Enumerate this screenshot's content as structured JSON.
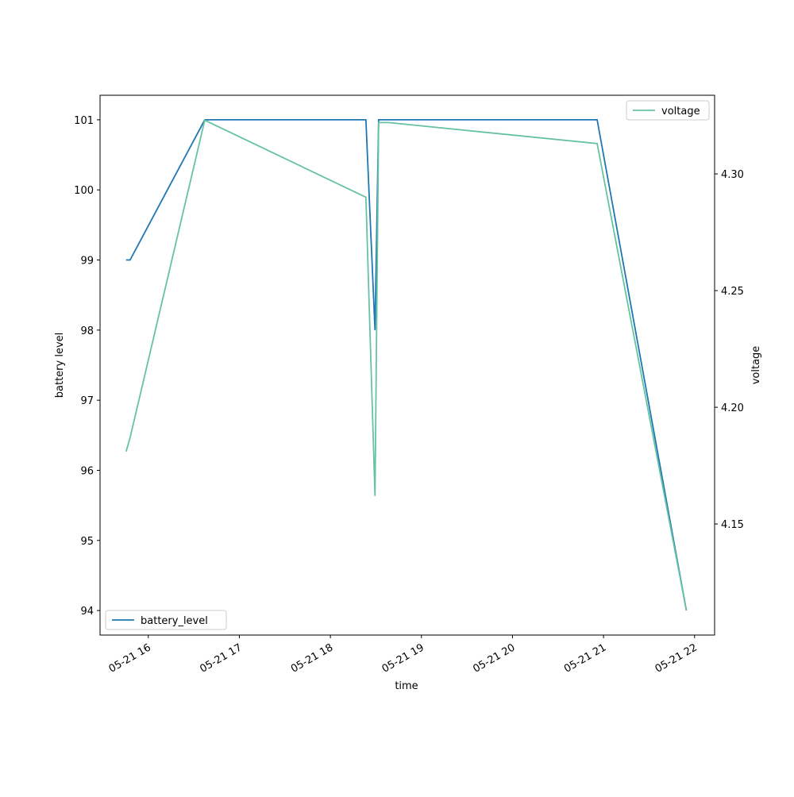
{
  "chart_data": {
    "type": "line",
    "xlabel": "time",
    "ylabel": "battery level",
    "y2label": "voltage",
    "xlim": [
      15.47,
      22.22
    ],
    "xticks": [
      {
        "value": 16,
        "label": "05-21 16"
      },
      {
        "value": 17,
        "label": "05-21 17"
      },
      {
        "value": 18,
        "label": "05-21 18"
      },
      {
        "value": 19,
        "label": "05-21 19"
      },
      {
        "value": 20,
        "label": "05-21 20"
      },
      {
        "value": 21,
        "label": "05-21 21"
      },
      {
        "value": 22,
        "label": "05-21 22"
      }
    ],
    "ylim": [
      93.65,
      101.35
    ],
    "yticks": [
      94,
      95,
      96,
      97,
      98,
      99,
      100,
      101
    ],
    "y2lim": [
      4.1024,
      4.3337
    ],
    "y2ticks": [
      {
        "value": 4.15,
        "label": "4.15"
      },
      {
        "value": 4.2,
        "label": "4.20"
      },
      {
        "value": 4.25,
        "label": "4.25"
      },
      {
        "value": 4.3,
        "label": "4.30"
      }
    ],
    "series": [
      {
        "name": "battery_level",
        "color": "#1f77b4",
        "legend": "lower left",
        "x": [
          15.756,
          15.8,
          16.62,
          18.39,
          18.49,
          18.53,
          20.93,
          21.91
        ],
        "values": [
          99,
          99,
          101,
          101,
          98,
          101,
          101,
          94
        ]
      },
      {
        "name": "voltage",
        "color": "#66c2a5",
        "axis": "y2",
        "legend": "upper right",
        "x": [
          15.756,
          15.8,
          16.62,
          18.39,
          18.49,
          18.53,
          18.64,
          20.93,
          21.91
        ],
        "values": [
          4.181,
          4.187,
          4.323,
          4.29,
          4.162,
          4.322,
          4.322,
          4.313,
          4.113
        ]
      }
    ]
  }
}
